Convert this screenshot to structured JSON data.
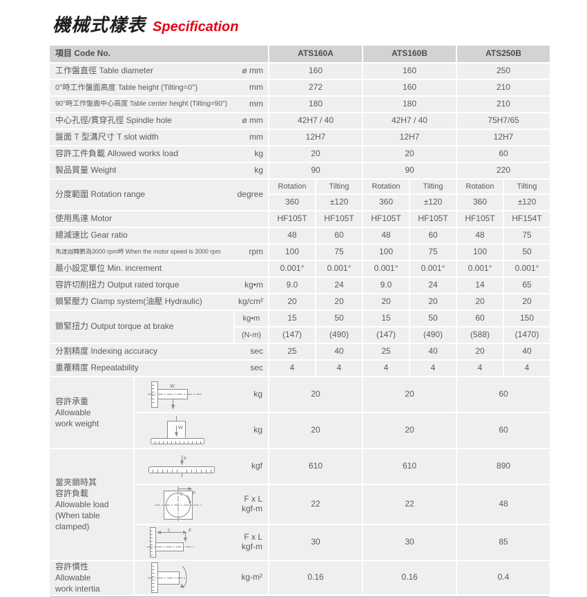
{
  "title": {
    "zh": "機械式樣表",
    "en": "Specification"
  },
  "colors": {
    "accent_red": "#e60012",
    "header_bg": "#d3d3d4",
    "cell_bg": "#efeff0",
    "text": "#595a5c"
  },
  "table": {
    "header": {
      "label": "項目 Code No.",
      "models": [
        "ATS160A",
        "ATS160B",
        "ATS250B"
      ]
    },
    "simple_rows": [
      {
        "label": "工作盤直徑 Table diameter",
        "unit": "ø mm",
        "values": [
          "160",
          "160",
          "250"
        ]
      },
      {
        "label": "0°時工作盤面高度 Table height (Tilting=0°)",
        "unit": "mm",
        "values": [
          "272",
          "160",
          "210"
        ]
      },
      {
        "label": "90°時工作盤面中心高度 Table center height (Tilting=90°)",
        "unit": "mm",
        "values": [
          "180",
          "180",
          "210"
        ]
      },
      {
        "label": "中心孔徑/貫穿孔徑 Spindle hole",
        "unit": "ø mm",
        "values": [
          "42H7 / 40",
          "42H7 / 40",
          "75H7/65"
        ]
      },
      {
        "label": "盤面 T 型溝尺寸 T slot width",
        "unit": "mm",
        "values": [
          "12H7",
          "12H7",
          "12H7"
        ]
      },
      {
        "label": "容許工件負載 Allowed works load",
        "unit": "kg",
        "values": [
          "20",
          "20",
          "60"
        ]
      },
      {
        "label": "製品質量 Weight",
        "unit": "kg",
        "values": [
          "90",
          "90",
          "220"
        ]
      }
    ],
    "rotation": {
      "label": "分度範圍 Rotation range",
      "unit": "degree",
      "subheaders": [
        "Rotation",
        "Tilting",
        "Rotation",
        "Tilting",
        "Rotation",
        "Tilting"
      ],
      "values": [
        "360",
        "±120",
        "360",
        "±120",
        "360",
        "±120"
      ]
    },
    "six_rows_a": [
      {
        "label": "使用馬達  Motor",
        "unit": "",
        "values": [
          "HF105T",
          "HF105T",
          "HF105T",
          "HF105T",
          "HF105T",
          "HF154T"
        ]
      },
      {
        "label": "總減速比 Gear ratio",
        "unit": "",
        "values": [
          "48",
          "60",
          "48",
          "60",
          "48",
          "75"
        ]
      },
      {
        "label": "馬達迴轉數為3000 rpm時 When the motor speed is 3000 rpm",
        "unit": "rpm",
        "values": [
          "100",
          "75",
          "100",
          "75",
          "100",
          "50"
        ]
      },
      {
        "label": "最小設定單位 Min. increment",
        "unit": "",
        "values": [
          "0.001°",
          "0.001°",
          "0.001°",
          "0.001°",
          "0.001°",
          "0.001°"
        ]
      },
      {
        "label": "容許切削扭力 Output rated torque",
        "unit": "kg•m",
        "values": [
          "9.0",
          "24",
          "9.0",
          "24",
          "14",
          "65"
        ]
      },
      {
        "label": "鎖緊壓力 Clamp system(油壓 Hydraulic)",
        "unit": "kg/cm²",
        "values": [
          "20",
          "20",
          "20",
          "20",
          "20",
          "20"
        ]
      }
    ],
    "brake": {
      "label": "鎖緊扭力 Output torque at brake",
      "rows": [
        {
          "unit": "kg•m",
          "values": [
            "15",
            "50",
            "15",
            "50",
            "60",
            "150"
          ]
        },
        {
          "unit": "(N-m)",
          "values": [
            "(147)",
            "(490)",
            "(147)",
            "(490)",
            "(588)",
            "(1470)"
          ]
        }
      ]
    },
    "six_rows_b": [
      {
        "label": "分割精度 Indexing accuracy",
        "unit": "sec",
        "values": [
          "25",
          "40",
          "25",
          "40",
          "20",
          "40"
        ]
      },
      {
        "label": "重覆精度 Repeatability",
        "unit": "sec",
        "values": [
          "4",
          "4",
          "4",
          "4",
          "4",
          "4"
        ]
      }
    ],
    "work_weight": {
      "label": "容許承重\nAllowable\nwork weight",
      "rows": [
        {
          "icon": "work-weight-horizontal",
          "unit": "kg",
          "values": [
            "20",
            "20",
            "60"
          ]
        },
        {
          "icon": "work-weight-vertical",
          "unit": "kg",
          "values": [
            "20",
            "20",
            "60"
          ]
        }
      ]
    },
    "clamped": {
      "label": "當夾鎖時其\n容許負載\nAllowable load\n(When table\n clamped)",
      "rows": [
        {
          "icon": "clamp-load-table",
          "unit": "kgf",
          "values": [
            "610",
            "610",
            "890"
          ]
        },
        {
          "icon": "clamp-torque-top-view",
          "unit": "F x L\nkgf-m",
          "values": [
            "22",
            "22",
            "48"
          ]
        },
        {
          "icon": "clamp-torque-side-view",
          "unit": "F x L\nkgf-m",
          "values": [
            "30",
            "30",
            "85"
          ]
        }
      ]
    },
    "inertia": {
      "label": "容許慣性\nAllowable\nwork intertia",
      "row": {
        "icon": "work-inertia-rotation",
        "unit": "kg-m²",
        "values": [
          "0.16",
          "0.16",
          "0.4"
        ]
      }
    }
  }
}
